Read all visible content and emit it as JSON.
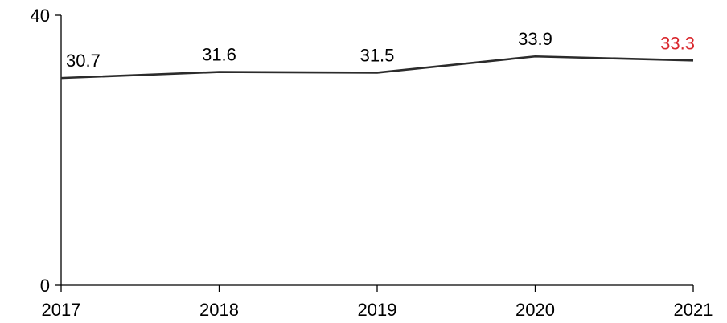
{
  "chart_data": {
    "type": "line",
    "categories": [
      "2017",
      "2018",
      "2019",
      "2020",
      "2021"
    ],
    "series": [
      {
        "values": [
          30.7,
          31.6,
          31.5,
          33.9,
          33.3
        ],
        "color": "#2b2b2b"
      }
    ],
    "data_labels": [
      "30.7",
      "31.6",
      "31.5",
      "33.9",
      "33.3"
    ],
    "highlight_label_index": 4,
    "highlight_color": "#d9262c",
    "ylim": [
      0,
      40
    ],
    "yticks": [
      "0",
      "40"
    ],
    "title": "",
    "xlabel": "",
    "ylabel": "",
    "grid": false,
    "legend": "none"
  }
}
